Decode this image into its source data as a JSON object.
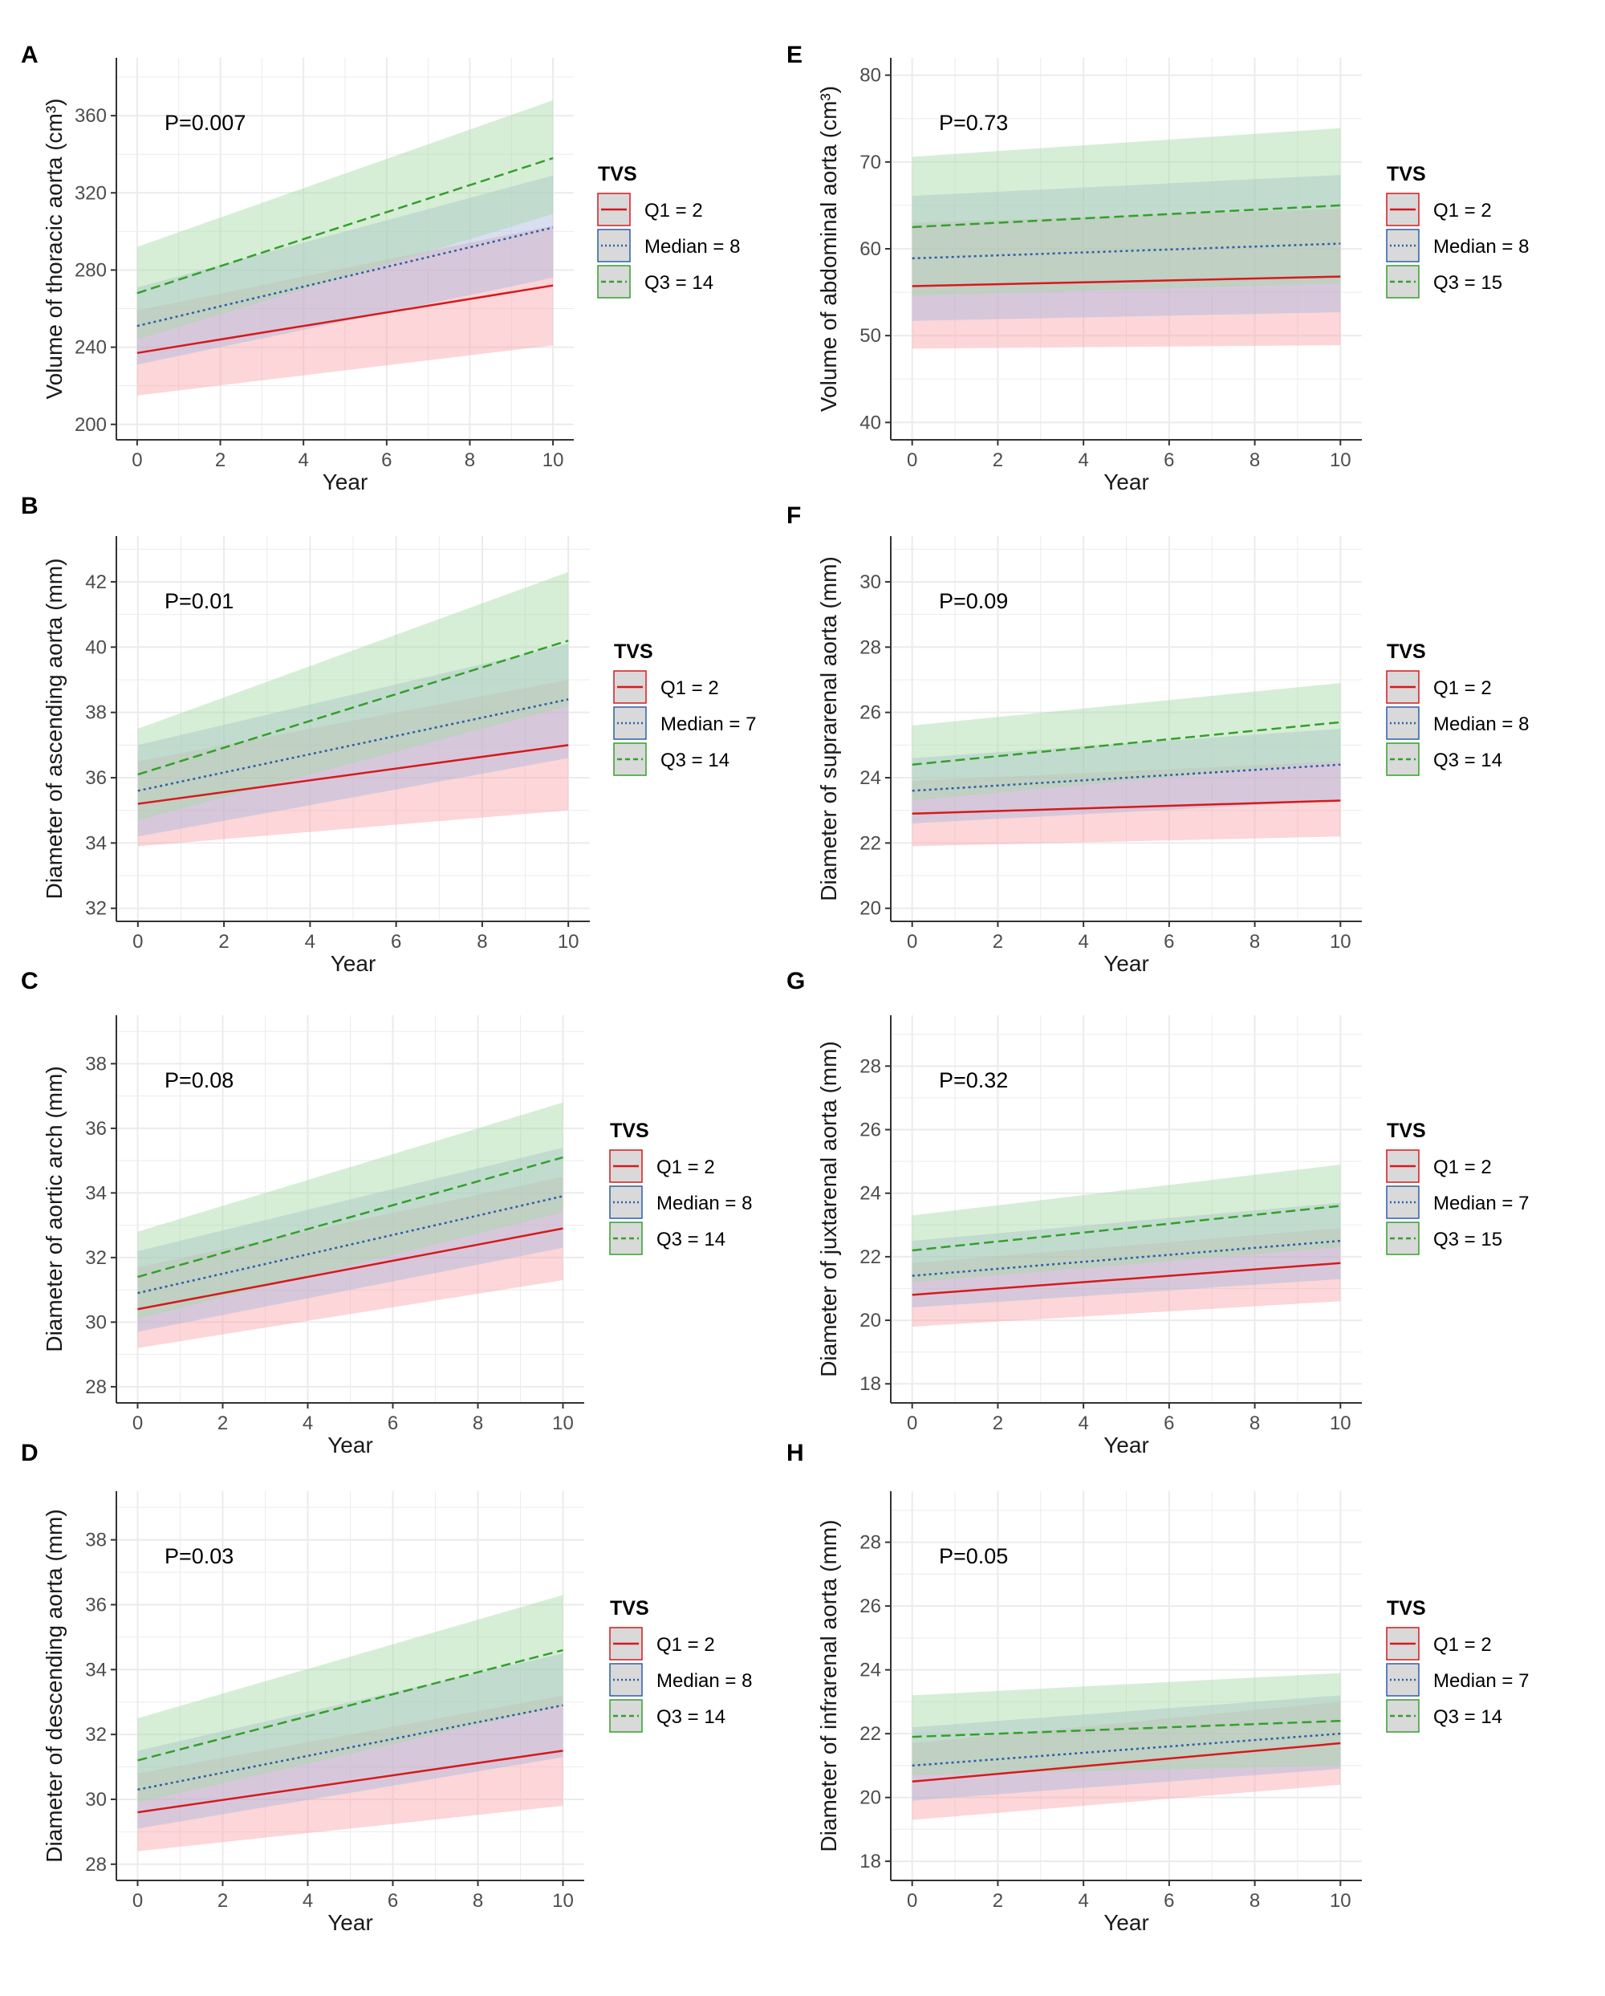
{
  "figure": {
    "series_styles": {
      "q1": {
        "color": "#d7191c",
        "band": "#f8a3a8",
        "dash": "solid"
      },
      "median": {
        "color": "#2c5ea8",
        "band": "#a9b8dd",
        "dash": "dotted"
      },
      "q3": {
        "color": "#33a02c",
        "band": "#a6d9a3",
        "dash": "dashed"
      }
    },
    "grid_color": "#ebebeb",
    "axis_color": "#333333"
  },
  "chart_data": [
    {
      "panel": "A",
      "type": "line",
      "title": "",
      "xlabel": "Year",
      "ylabel": "Volume of thoracic aorta (cm³)",
      "xlim": [
        -0.5,
        10.5
      ],
      "ylim": [
        192,
        390
      ],
      "xticks": [
        0,
        2,
        4,
        6,
        8,
        10
      ],
      "xtick_labels": [
        "0",
        "2",
        "4",
        "6",
        "8",
        "10"
      ],
      "yticks": [
        200,
        240,
        280,
        320,
        360
      ],
      "ytick_labels": [
        "200",
        "240",
        "280",
        "320",
        "360"
      ],
      "pvalue": "P=0.007",
      "legend_title": "TVS",
      "series": [
        {
          "key": "q1",
          "name": "Q1 = 2",
          "x": [
            0,
            10
          ],
          "y": [
            237,
            272
          ],
          "lower": [
            215,
            241
          ],
          "upper": [
            259,
            303
          ]
        },
        {
          "key": "median",
          "name": "Median = 8",
          "x": [
            0,
            10
          ],
          "y": [
            251,
            302
          ],
          "lower": [
            231,
            276
          ],
          "upper": [
            271,
            329
          ]
        },
        {
          "key": "q3",
          "name": "Q3 = 14",
          "x": [
            0,
            10
          ],
          "y": [
            268,
            338
          ],
          "lower": [
            244,
            309
          ],
          "upper": [
            292,
            368
          ]
        }
      ]
    },
    {
      "panel": "B",
      "type": "line",
      "title": "",
      "xlabel": "Year",
      "ylabel": "Diameter of ascending aorta (mm)",
      "xlim": [
        -0.5,
        10.5
      ],
      "ylim": [
        31.6,
        43.4
      ],
      "xticks": [
        0,
        2,
        4,
        6,
        8,
        10
      ],
      "xtick_labels": [
        "0",
        "2",
        "4",
        "6",
        "8",
        "10"
      ],
      "yticks": [
        32,
        34,
        36,
        38,
        40,
        42
      ],
      "ytick_labels": [
        "32",
        "34",
        "36",
        "38",
        "40",
        "42"
      ],
      "pvalue": "P=0.01",
      "legend_title": "TVS",
      "series": [
        {
          "key": "q1",
          "name": "Q1 = 2",
          "x": [
            0,
            10
          ],
          "y": [
            35.2,
            37.0
          ],
          "lower": [
            33.9,
            35.0
          ],
          "upper": [
            36.5,
            39.0
          ]
        },
        {
          "key": "median",
          "name": "Median = 7",
          "x": [
            0,
            10
          ],
          "y": [
            35.6,
            38.4
          ],
          "lower": [
            34.2,
            36.6
          ],
          "upper": [
            37.0,
            40.1
          ]
        },
        {
          "key": "q3",
          "name": "Q3 = 14",
          "x": [
            0,
            10
          ],
          "y": [
            36.1,
            40.2
          ],
          "lower": [
            34.7,
            38.2
          ],
          "upper": [
            37.5,
            42.3
          ]
        }
      ]
    },
    {
      "panel": "C",
      "type": "line",
      "title": "",
      "xlabel": "Year",
      "ylabel": "Diameter of aortic arch (mm)",
      "xlim": [
        -0.5,
        10.5
      ],
      "ylim": [
        27.5,
        39.5
      ],
      "xticks": [
        0,
        2,
        4,
        6,
        8,
        10
      ],
      "xtick_labels": [
        "0",
        "2",
        "4",
        "6",
        "8",
        "10"
      ],
      "yticks": [
        28,
        30,
        32,
        34,
        36,
        38
      ],
      "ytick_labels": [
        "28",
        "30",
        "32",
        "34",
        "36",
        "38"
      ],
      "pvalue": "P=0.08",
      "legend_title": "TVS",
      "series": [
        {
          "key": "q1",
          "name": "Q1 = 2",
          "x": [
            0,
            10
          ],
          "y": [
            30.4,
            32.9
          ],
          "lower": [
            29.2,
            31.3
          ],
          "upper": [
            31.7,
            34.5
          ]
        },
        {
          "key": "median",
          "name": "Median = 8",
          "x": [
            0,
            10
          ],
          "y": [
            30.9,
            33.9
          ],
          "lower": [
            29.7,
            32.3
          ],
          "upper": [
            32.2,
            35.4
          ]
        },
        {
          "key": "q3",
          "name": "Q3 = 14",
          "x": [
            0,
            10
          ],
          "y": [
            31.4,
            35.1
          ],
          "lower": [
            30.1,
            33.4
          ],
          "upper": [
            32.8,
            36.8
          ]
        }
      ]
    },
    {
      "panel": "D",
      "type": "line",
      "title": "",
      "xlabel": "Year",
      "ylabel": "Diameter of descending aorta (mm)",
      "xlim": [
        -0.5,
        10.5
      ],
      "ylim": [
        27.5,
        39.5
      ],
      "xticks": [
        0,
        2,
        4,
        6,
        8,
        10
      ],
      "xtick_labels": [
        "0",
        "2",
        "4",
        "6",
        "8",
        "10"
      ],
      "yticks": [
        28,
        30,
        32,
        34,
        36,
        38
      ],
      "ytick_labels": [
        "28",
        "30",
        "32",
        "34",
        "36",
        "38"
      ],
      "pvalue": "P=0.03",
      "legend_title": "TVS",
      "series": [
        {
          "key": "q1",
          "name": "Q1 = 2",
          "x": [
            0,
            10
          ],
          "y": [
            29.6,
            31.5
          ],
          "lower": [
            28.4,
            29.8
          ],
          "upper": [
            30.8,
            33.2
          ]
        },
        {
          "key": "median",
          "name": "Median = 8",
          "x": [
            0,
            10
          ],
          "y": [
            30.3,
            32.9
          ],
          "lower": [
            29.1,
            31.3
          ],
          "upper": [
            31.5,
            34.5
          ]
        },
        {
          "key": "q3",
          "name": "Q3 = 14",
          "x": [
            0,
            10
          ],
          "y": [
            31.2,
            34.6
          ],
          "lower": [
            29.9,
            32.9
          ],
          "upper": [
            32.5,
            36.3
          ]
        }
      ]
    },
    {
      "panel": "E",
      "type": "line",
      "title": "",
      "xlabel": "Year",
      "ylabel": "Volume of abdominal aorta (cm³)",
      "xlim": [
        -0.5,
        10.5
      ],
      "ylim": [
        38,
        82
      ],
      "xticks": [
        0,
        2,
        4,
        6,
        8,
        10
      ],
      "xtick_labels": [
        "0",
        "2",
        "4",
        "6",
        "8",
        "10"
      ],
      "yticks": [
        40,
        50,
        60,
        70,
        80
      ],
      "ytick_labels": [
        "40",
        "50",
        "60",
        "70",
        "80"
      ],
      "pvalue": "P=0.73",
      "legend_title": "TVS",
      "series": [
        {
          "key": "q1",
          "name": "Q1 = 2",
          "x": [
            0,
            10
          ],
          "y": [
            55.7,
            56.8
          ],
          "lower": [
            48.5,
            48.9
          ],
          "upper": [
            63.0,
            64.6
          ]
        },
        {
          "key": "median",
          "name": "Median = 8",
          "x": [
            0,
            10
          ],
          "y": [
            58.9,
            60.6
          ],
          "lower": [
            51.7,
            52.7
          ],
          "upper": [
            66.1,
            68.5
          ]
        },
        {
          "key": "q3",
          "name": "Q3 = 15",
          "x": [
            0,
            10
          ],
          "y": [
            62.5,
            65.0
          ],
          "lower": [
            54.6,
            56.0
          ],
          "upper": [
            70.6,
            73.9
          ]
        }
      ]
    },
    {
      "panel": "F",
      "type": "line",
      "title": "",
      "xlabel": "Year",
      "ylabel": "Diameter of suprarenal aorta (mm)",
      "xlim": [
        -0.5,
        10.5
      ],
      "ylim": [
        19.6,
        31.4
      ],
      "xticks": [
        0,
        2,
        4,
        6,
        8,
        10
      ],
      "xtick_labels": [
        "0",
        "2",
        "4",
        "6",
        "8",
        "10"
      ],
      "yticks": [
        20,
        22,
        24,
        26,
        28,
        30
      ],
      "ytick_labels": [
        "20",
        "22",
        "24",
        "26",
        "28",
        "30"
      ],
      "pvalue": "P=0.09",
      "legend_title": "TVS",
      "series": [
        {
          "key": "q1",
          "name": "Q1 = 2",
          "x": [
            0,
            10
          ],
          "y": [
            22.9,
            23.3
          ],
          "lower": [
            21.9,
            22.2
          ],
          "upper": [
            23.9,
            24.5
          ]
        },
        {
          "key": "median",
          "name": "Median = 8",
          "x": [
            0,
            10
          ],
          "y": [
            23.6,
            24.4
          ],
          "lower": [
            22.6,
            23.3
          ],
          "upper": [
            24.6,
            25.5
          ]
        },
        {
          "key": "q3",
          "name": "Q3 = 14",
          "x": [
            0,
            10
          ],
          "y": [
            24.4,
            25.7
          ],
          "lower": [
            23.3,
            24.5
          ],
          "upper": [
            25.6,
            26.9
          ]
        }
      ]
    },
    {
      "panel": "G",
      "type": "line",
      "title": "",
      "xlabel": "Year",
      "ylabel": "Diameter of juxtarenal aorta (mm)",
      "xlim": [
        -0.5,
        10.5
      ],
      "ylim": [
        17.4,
        29.6
      ],
      "xticks": [
        0,
        2,
        4,
        6,
        8,
        10
      ],
      "xtick_labels": [
        "0",
        "2",
        "4",
        "6",
        "8",
        "10"
      ],
      "yticks": [
        18,
        20,
        22,
        24,
        26,
        28
      ],
      "ytick_labels": [
        "18",
        "20",
        "22",
        "24",
        "26",
        "28"
      ],
      "pvalue": "P=0.32",
      "legend_title": "TVS",
      "series": [
        {
          "key": "q1",
          "name": "Q1 = 2",
          "x": [
            0,
            10
          ],
          "y": [
            20.8,
            21.8
          ],
          "lower": [
            19.8,
            20.6
          ],
          "upper": [
            21.8,
            22.9
          ]
        },
        {
          "key": "median",
          "name": "Median = 7",
          "x": [
            0,
            10
          ],
          "y": [
            21.4,
            22.5
          ],
          "lower": [
            20.4,
            21.3
          ],
          "upper": [
            22.5,
            23.7
          ]
        },
        {
          "key": "q3",
          "name": "Q3 = 15",
          "x": [
            0,
            10
          ],
          "y": [
            22.2,
            23.6
          ],
          "lower": [
            21.2,
            22.3
          ],
          "upper": [
            23.3,
            24.9
          ]
        }
      ]
    },
    {
      "panel": "H",
      "type": "line",
      "title": "",
      "xlabel": "Year",
      "ylabel": "Diameter of infrarenal aorta (mm)",
      "xlim": [
        -0.5,
        10.5
      ],
      "ylim": [
        17.4,
        29.6
      ],
      "xticks": [
        0,
        2,
        4,
        6,
        8,
        10
      ],
      "xtick_labels": [
        "0",
        "2",
        "4",
        "6",
        "8",
        "10"
      ],
      "yticks": [
        18,
        20,
        22,
        24,
        26,
        28
      ],
      "ytick_labels": [
        "18",
        "20",
        "22",
        "24",
        "26",
        "28"
      ],
      "pvalue": "P=0.05",
      "legend_title": "TVS",
      "series": [
        {
          "key": "q1",
          "name": "Q1 = 2",
          "x": [
            0,
            10
          ],
          "y": [
            20.5,
            21.7
          ],
          "lower": [
            19.3,
            20.4
          ],
          "upper": [
            21.7,
            23.0
          ]
        },
        {
          "key": "median",
          "name": "Median = 7",
          "x": [
            0,
            10
          ],
          "y": [
            21.0,
            22.0
          ],
          "lower": [
            19.9,
            20.9
          ],
          "upper": [
            22.2,
            23.2
          ]
        },
        {
          "key": "q3",
          "name": "Q3 = 14",
          "x": [
            0,
            10
          ],
          "y": [
            21.9,
            22.4
          ],
          "lower": [
            20.7,
            21.0
          ],
          "upper": [
            23.2,
            23.9
          ]
        }
      ]
    }
  ]
}
